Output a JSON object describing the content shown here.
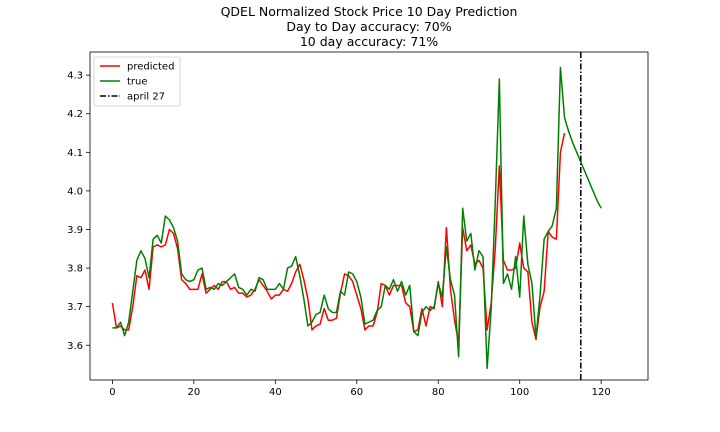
{
  "chart_data": {
    "type": "line",
    "title": [
      "QDEL Normalized Stock Price 10 Day Prediction",
      "Day to Day accuracy: 70%",
      "10 day accuracy: 71%"
    ],
    "xlabel": "",
    "ylabel": "",
    "xlim": [
      -5.5,
      131.5
    ],
    "ylim": [
      3.51,
      4.36
    ],
    "xticks": [
      0,
      20,
      40,
      60,
      80,
      100,
      120
    ],
    "yticks": [
      3.6,
      3.7,
      3.8,
      3.9,
      4.0,
      4.1,
      4.2,
      4.3
    ],
    "xtick_labels": [
      "0",
      "20",
      "40",
      "60",
      "80",
      "100",
      "120"
    ],
    "ytick_labels": [
      "3.6",
      "3.7",
      "3.8",
      "3.9",
      "4.0",
      "4.1",
      "4.2",
      "4.3"
    ],
    "grid": false,
    "legend_position": "upper-left",
    "series": [
      {
        "name": "predicted",
        "color": "#ff0000",
        "start_x": 0,
        "values": [
          3.71,
          3.645,
          3.65,
          3.64,
          3.64,
          3.7,
          3.78,
          3.775,
          3.795,
          3.745,
          3.855,
          3.86,
          3.855,
          3.86,
          3.9,
          3.89,
          3.85,
          3.77,
          3.76,
          3.745,
          3.745,
          3.745,
          3.785,
          3.735,
          3.745,
          3.755,
          3.745,
          3.765,
          3.765,
          3.745,
          3.75,
          3.735,
          3.735,
          3.725,
          3.73,
          3.745,
          3.77,
          3.755,
          3.74,
          3.72,
          3.73,
          3.73,
          3.745,
          3.74,
          3.76,
          3.79,
          3.81,
          3.77,
          3.72,
          3.64,
          3.65,
          3.655,
          3.695,
          3.665,
          3.665,
          3.67,
          3.735,
          3.785,
          3.78,
          3.765,
          3.73,
          3.695,
          3.64,
          3.65,
          3.65,
          3.685,
          3.76,
          3.755,
          3.73,
          3.755,
          3.755,
          3.755,
          3.71,
          3.7,
          3.635,
          3.64,
          3.695,
          3.65,
          3.7,
          3.695,
          3.765,
          3.7,
          3.905,
          3.745,
          3.665,
          3.605,
          3.905,
          3.845,
          3.86,
          3.81,
          3.82,
          3.8,
          3.64,
          3.71,
          3.85,
          4.065,
          3.82,
          3.795,
          3.795,
          3.8,
          3.865,
          3.8,
          3.79,
          3.66,
          3.615,
          3.7,
          3.74,
          3.895,
          3.88,
          3.875,
          4.1,
          4.15
        ]
      },
      {
        "name": "true",
        "color": "#008000",
        "start_x": 0,
        "values": [
          3.645,
          3.645,
          3.66,
          3.625,
          3.66,
          3.74,
          3.82,
          3.845,
          3.825,
          3.775,
          3.875,
          3.885,
          3.865,
          3.935,
          3.925,
          3.905,
          3.87,
          3.785,
          3.77,
          3.765,
          3.77,
          3.795,
          3.8,
          3.745,
          3.75,
          3.745,
          3.76,
          3.755,
          3.765,
          3.775,
          3.785,
          3.75,
          3.745,
          3.73,
          3.745,
          3.74,
          3.775,
          3.77,
          3.745,
          3.745,
          3.745,
          3.76,
          3.745,
          3.8,
          3.805,
          3.83,
          3.78,
          3.72,
          3.65,
          3.66,
          3.68,
          3.685,
          3.73,
          3.695,
          3.685,
          3.685,
          3.74,
          3.73,
          3.79,
          3.785,
          3.765,
          3.725,
          3.655,
          3.66,
          3.665,
          3.69,
          3.7,
          3.755,
          3.745,
          3.77,
          3.74,
          3.765,
          3.73,
          3.755,
          3.635,
          3.625,
          3.685,
          3.7,
          3.69,
          3.7,
          3.76,
          3.725,
          3.855,
          3.77,
          3.73,
          3.57,
          3.955,
          3.87,
          3.89,
          3.795,
          3.845,
          3.83,
          3.54,
          3.695,
          3.97,
          4.29,
          3.76,
          3.785,
          3.745,
          3.83,
          3.725,
          3.935,
          3.81,
          3.76,
          3.62,
          3.73,
          3.875,
          3.895,
          3.91,
          3.955,
          4.32,
          4.19,
          4.155,
          4.125,
          4.1,
          4.075,
          4.05,
          4.025,
          4.0,
          3.975,
          3.955
        ]
      },
      {
        "name": "april 27",
        "color": "#000000",
        "style": "dashdot",
        "vertical_x": 115
      }
    ]
  }
}
